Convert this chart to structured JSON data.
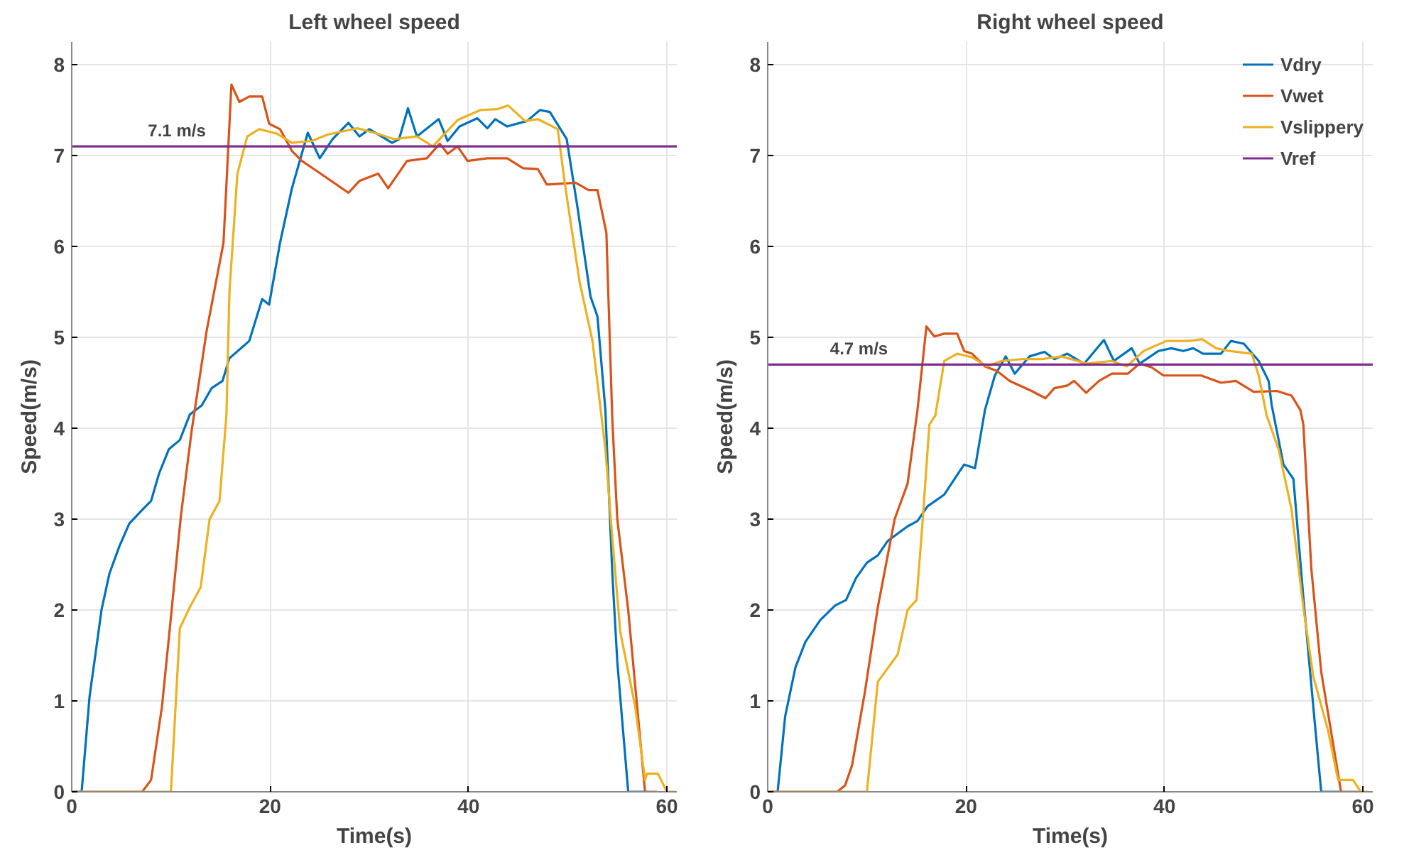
{
  "chart_data": [
    {
      "type": "line",
      "title": "Left wheel speed",
      "xlabel": "Time(s)",
      "ylabel": "Speed(m/s)",
      "xlim": [
        0,
        61
      ],
      "ylim": [
        0,
        8.25
      ],
      "xticks": [
        0,
        20,
        40,
        60
      ],
      "yticks": [
        0,
        1,
        2,
        3,
        4,
        5,
        6,
        7,
        8
      ],
      "grid": true,
      "legend": false,
      "annotations": [
        {
          "text": "7.1 m/s",
          "x": 10.6,
          "y": 7.1
        }
      ],
      "series": [
        {
          "color": "#0072bd",
          "x": [
            0,
            1.0,
            1.8,
            2.5,
            3.0,
            3.8,
            4.8,
            5.8,
            7.1,
            8.0,
            8.8,
            9.8,
            10.9,
            11.9,
            13.1,
            14.1,
            15.2,
            15.9,
            17.9,
            19.2,
            19.9,
            21.0,
            22.2,
            23.8,
            25,
            26.3,
            27.9,
            29,
            30,
            32.3,
            33,
            33.9,
            34.8,
            37,
            37.9,
            39.1,
            40.9,
            41.9,
            42.7,
            43.9,
            45.9,
            47.2,
            48.2,
            49.9,
            51,
            52.3,
            53,
            53.8,
            54.5,
            55,
            56.1,
            58
          ],
          "values": [
            0,
            0,
            1.05,
            1.6,
            2.0,
            2.4,
            2.7,
            2.95,
            3.1,
            3.2,
            3.5,
            3.77,
            3.87,
            4.15,
            4.25,
            4.44,
            4.52,
            4.77,
            4.96,
            5.42,
            5.36,
            6.04,
            6.64,
            7.25,
            6.97,
            7.18,
            7.36,
            7.21,
            7.29,
            7.14,
            7.18,
            7.52,
            7.21,
            7.4,
            7.16,
            7.32,
            7.41,
            7.3,
            7.4,
            7.32,
            7.38,
            7.5,
            7.48,
            7.18,
            6.42,
            5.45,
            5.23,
            4.2,
            2.4,
            1.43,
            0,
            0
          ]
        },
        {
          "color": "#d95319",
          "x": [
            0,
            7.1,
            8.0,
            9.1,
            10.1,
            11.0,
            12.1,
            13.6,
            15.3,
            16.1,
            16.9,
            17.9,
            19.2,
            19.9,
            21,
            22.2,
            23.2,
            24.7,
            27.9,
            29,
            30.9,
            31.9,
            33.8,
            35.8,
            37.1,
            37.9,
            38.9,
            39.9,
            41.9,
            43.9,
            45.5,
            47,
            47.9,
            50.8,
            52.1,
            53,
            53.9,
            54.5,
            55,
            56.1,
            57.8,
            59
          ],
          "values": [
            0,
            0,
            0.13,
            0.94,
            2.03,
            3.03,
            3.98,
            5.07,
            6.04,
            7.78,
            7.59,
            7.65,
            7.65,
            7.35,
            7.29,
            7.05,
            6.94,
            6.83,
            6.59,
            6.72,
            6.8,
            6.64,
            6.94,
            6.97,
            7.13,
            7.02,
            7.1,
            6.94,
            6.97,
            6.97,
            6.86,
            6.85,
            6.68,
            6.7,
            6.62,
            6.62,
            6.15,
            4.09,
            3.0,
            2.0,
            0,
            0
          ]
        },
        {
          "color": "#edb120",
          "x": [
            0,
            10.0,
            10.9,
            11.9,
            13.0,
            13.9,
            14.9,
            15.6,
            15.9,
            16.7,
            17.7,
            18.9,
            20.7,
            22.2,
            24.2,
            25.8,
            28.8,
            30.8,
            32.5,
            34.8,
            36.4,
            38.9,
            41.2,
            42.9,
            44,
            45.7,
            47,
            49,
            49.7,
            51.2,
            52.5,
            53.8,
            54.5,
            55.3,
            56.8,
            57.8,
            58,
            59.1,
            60,
            60.9
          ],
          "values": [
            0,
            0,
            1.8,
            2.03,
            2.25,
            3.0,
            3.2,
            4.15,
            5.5,
            6.8,
            7.21,
            7.29,
            7.24,
            7.14,
            7.16,
            7.23,
            7.3,
            7.24,
            7.18,
            7.21,
            7.1,
            7.39,
            7.5,
            7.51,
            7.55,
            7.38,
            7.4,
            7.29,
            6.7,
            5.61,
            4.96,
            3.77,
            2.79,
            1.76,
            0.94,
            0.13,
            0.2,
            0.2,
            0,
            0
          ]
        },
        {
          "color": "#7e2f8e",
          "x": [
            0,
            61
          ],
          "values": [
            7.1,
            7.1
          ]
        }
      ]
    },
    {
      "type": "line",
      "title": "Right wheel speed",
      "xlabel": "Time(s)",
      "ylabel": "Speed(m/s)",
      "xlim": [
        0,
        61
      ],
      "ylim": [
        0,
        8.25
      ],
      "xticks": [
        0,
        20,
        40,
        60
      ],
      "yticks": [
        0,
        1,
        2,
        3,
        4,
        5,
        6,
        7,
        8
      ],
      "grid": true,
      "legend": "top right",
      "annotations": [
        {
          "text": "4.7 m/s",
          "x": 9.2,
          "y": 4.7
        }
      ],
      "series": [
        {
          "name": "Vdry",
          "color": "#0072bd",
          "x": [
            0,
            1.0,
            1.76,
            2.8,
            3.8,
            5.3,
            6.8,
            7.9,
            8.9,
            10,
            11.1,
            12.1,
            14.1,
            15.1,
            16.1,
            17.8,
            19.8,
            20.9,
            21.9,
            22.9,
            24,
            24.9,
            26.4,
            27.9,
            28.9,
            30.2,
            31.9,
            33.9,
            34.9,
            36.7,
            37.5,
            39.4,
            40.7,
            41.9,
            42.9,
            43.9,
            45.7,
            46.7,
            48,
            49.5,
            50.5,
            50.8,
            52,
            53,
            54,
            55,
            55.8,
            57.8
          ],
          "values": [
            0,
            0,
            0.83,
            1.37,
            1.65,
            1.89,
            2.05,
            2.11,
            2.35,
            2.52,
            2.6,
            2.76,
            2.92,
            2.98,
            3.14,
            3.27,
            3.6,
            3.56,
            4.2,
            4.58,
            4.79,
            4.6,
            4.79,
            4.84,
            4.76,
            4.82,
            4.71,
            4.97,
            4.74,
            4.88,
            4.71,
            4.85,
            4.88,
            4.85,
            4.88,
            4.82,
            4.82,
            4.96,
            4.93,
            4.74,
            4.52,
            4.26,
            3.6,
            3.44,
            2.14,
            0.94,
            0,
            0
          ]
        },
        {
          "name": "Vwet",
          "color": "#d95319",
          "x": [
            0,
            7,
            7.8,
            8.5,
            9.8,
            11.1,
            12.8,
            14.1,
            15.1,
            16,
            16.8,
            17.8,
            19.1,
            19.8,
            20.6,
            21.9,
            23.1,
            24.4,
            26.6,
            28,
            28.9,
            30.2,
            30.9,
            32.1,
            33.4,
            34.7,
            36.3,
            37.5,
            38.7,
            39.9,
            42.2,
            43.7,
            45.7,
            47.2,
            49,
            51.3,
            52.8,
            53.7,
            54,
            54.8,
            55.8,
            57.8,
            59.8
          ],
          "values": [
            0,
            0,
            0.07,
            0.29,
            1.1,
            2.03,
            3.0,
            3.39,
            4.2,
            5.12,
            5.01,
            5.04,
            5.04,
            4.85,
            4.82,
            4.68,
            4.63,
            4.52,
            4.41,
            4.33,
            4.44,
            4.47,
            4.52,
            4.39,
            4.52,
            4.6,
            4.6,
            4.71,
            4.67,
            4.58,
            4.58,
            4.58,
            4.5,
            4.52,
            4.4,
            4.41,
            4.36,
            4.2,
            4.04,
            2.46,
            1.32,
            0,
            0
          ]
        },
        {
          "name": "Vslippery",
          "color": "#edb120",
          "x": [
            0,
            10,
            11.1,
            13.1,
            14.1,
            15,
            15.6,
            16.3,
            16.9,
            17.8,
            19.1,
            20.6,
            22.1,
            23.6,
            25.6,
            27.6,
            29.6,
            32.2,
            34.7,
            36.2,
            37.9,
            40.2,
            42.5,
            43.8,
            45.2,
            46.5,
            48.8,
            49.5,
            50.3,
            51.5,
            52.8,
            54,
            55,
            56.5,
            57.5,
            58,
            59,
            59.8,
            60.6
          ],
          "values": [
            0,
            0,
            1.21,
            1.51,
            2.0,
            2.11,
            2.95,
            4.04,
            4.14,
            4.74,
            4.82,
            4.78,
            4.68,
            4.74,
            4.76,
            4.76,
            4.79,
            4.71,
            4.74,
            4.68,
            4.85,
            4.96,
            4.96,
            4.98,
            4.88,
            4.85,
            4.82,
            4.58,
            4.14,
            3.77,
            3.11,
            2.03,
            1.27,
            0.67,
            0.13,
            0.13,
            0.13,
            0,
            0
          ]
        },
        {
          "name": "Vref",
          "color": "#7e2f8e",
          "x": [
            0,
            61
          ],
          "values": [
            4.7,
            4.7
          ]
        }
      ]
    }
  ]
}
